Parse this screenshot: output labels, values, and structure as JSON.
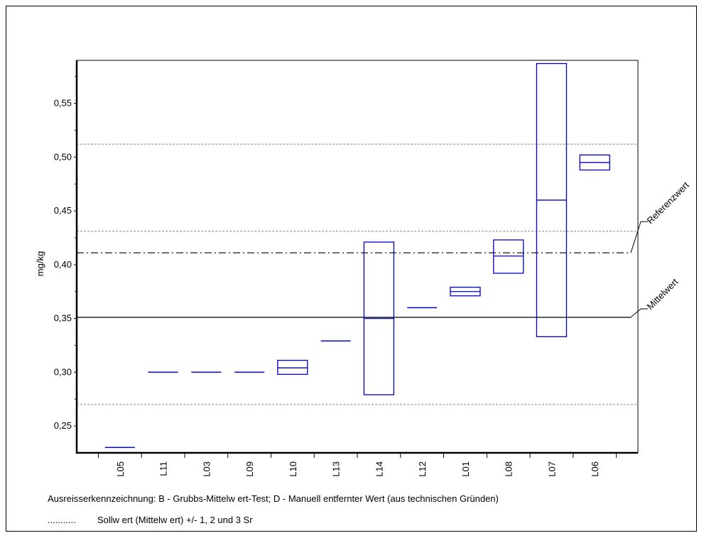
{
  "chart_data": {
    "type": "box",
    "ylabel": "mg/kg",
    "ylim": [
      0.225,
      0.59
    ],
    "y_ticks": [
      "0,25",
      "0,30",
      "0,35",
      "0,40",
      "0,45",
      "0,50",
      "0,55"
    ],
    "y_tick_values": [
      0.25,
      0.3,
      0.35,
      0.4,
      0.45,
      0.5,
      0.55
    ],
    "categories": [
      "L05",
      "L11",
      "L03",
      "L09",
      "L10",
      "L13",
      "L14",
      "L12",
      "L01",
      "L08",
      "L07",
      "L06"
    ],
    "boxes": [
      {
        "label": "L05",
        "low": 0.23,
        "mid": 0.23,
        "high": 0.23
      },
      {
        "label": "L11",
        "low": 0.3,
        "mid": 0.3,
        "high": 0.3
      },
      {
        "label": "L03",
        "low": 0.3,
        "mid": 0.3,
        "high": 0.3
      },
      {
        "label": "L09",
        "low": 0.3,
        "mid": 0.3,
        "high": 0.3
      },
      {
        "label": "L10",
        "low": 0.298,
        "mid": 0.304,
        "high": 0.311
      },
      {
        "label": "L13",
        "low": 0.329,
        "mid": 0.329,
        "high": 0.329
      },
      {
        "label": "L14",
        "low": 0.279,
        "mid": 0.35,
        "high": 0.421
      },
      {
        "label": "L12",
        "low": 0.36,
        "mid": 0.36,
        "high": 0.36
      },
      {
        "label": "L01",
        "low": 0.371,
        "mid": 0.375,
        "high": 0.379
      },
      {
        "label": "L08",
        "low": 0.392,
        "mid": 0.408,
        "high": 0.423
      },
      {
        "label": "L07",
        "low": 0.333,
        "mid": 0.46,
        "high": 0.587
      },
      {
        "label": "L06",
        "low": 0.488,
        "mid": 0.495,
        "high": 0.502
      }
    ],
    "mittelwert": 0.351,
    "referenzwert": 0.411,
    "sr_lines": [
      0.27,
      0.431,
      0.512
    ],
    "annotations": {
      "referenzwert": "Referenzwert",
      "mittelwert": "Mittelwert"
    },
    "colors": {
      "box": "#0000cc",
      "reference": "#000000",
      "sr": "#888888"
    }
  },
  "notes": {
    "outlier_legend": "Ausreisserkennzeichnung: B - Grubbs-Mittelw ert-Test; D - Manuell entfernter Wert (aus technischen Gründen)",
    "sr_legend_dots": "...........",
    "sr_legend_text": "Sollw ert (Mittelw ert) +/- 1, 2 und 3 Sr"
  }
}
